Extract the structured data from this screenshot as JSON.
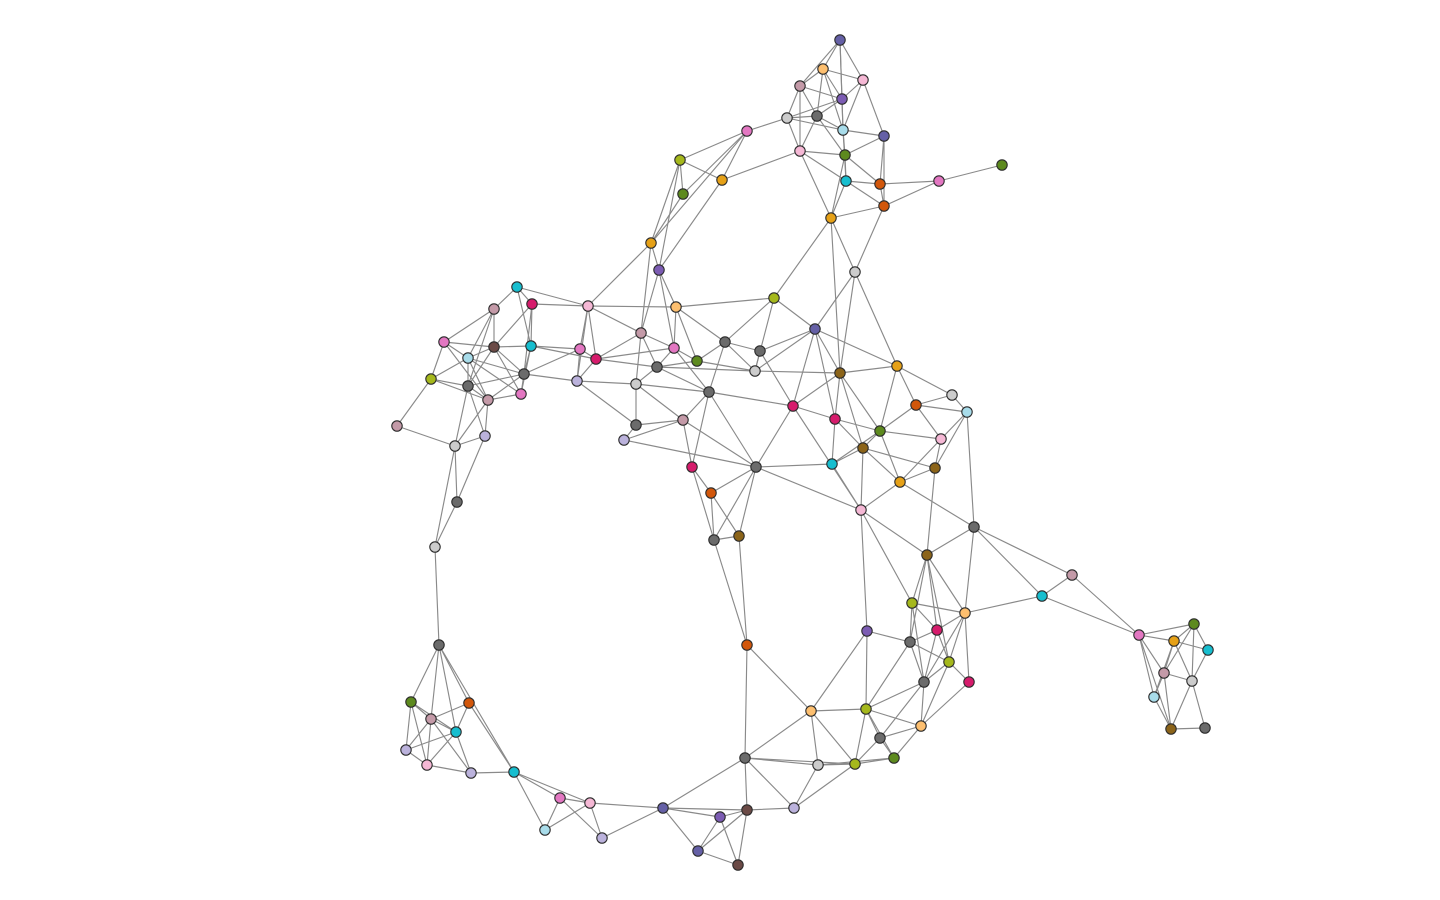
{
  "graph": {
    "type": "node-link network",
    "node_count": 127,
    "node_palette": {
      "teal": "#17becf",
      "pink": "#e377c2",
      "magenta": "#d61c6c",
      "olive_green": "#5d8a1e",
      "lime": "#a5b81c",
      "orange": "#e6a117",
      "dark_orange": "#d2570b",
      "peach": "#fdbf6f",
      "light_pink": "#f5b8d5",
      "mauve": "#c49aa8",
      "brown": "#8c6419",
      "dark_brown": "#6b4a46",
      "purple": "#7c5cb3",
      "slate_blue": "#6560a6",
      "lavender": "#bbb2dc",
      "light_blue": "#a8dcea",
      "gray": "#6b6b6b",
      "light_gray": "#cccccc"
    },
    "edge_color": "#8a8a8a",
    "node_stroke": "#2b2b2b"
  }
}
